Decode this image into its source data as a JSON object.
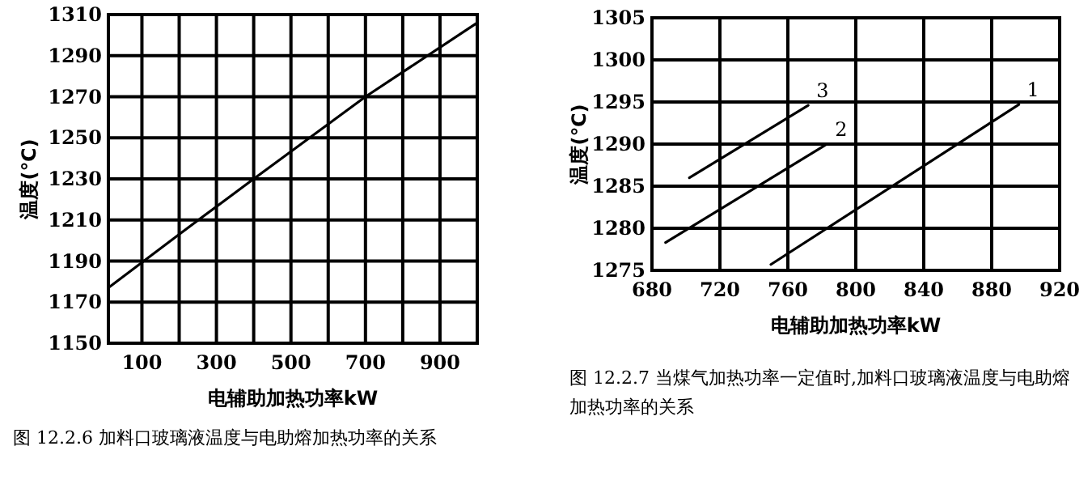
{
  "chart_data": [
    {
      "type": "line",
      "xlabel": "电辅助加热功率kW",
      "ylabel": "温度(℃)",
      "annotations": [
        "图 12.2.6  加料口玻璃液温度与电助熔加热功率的关系"
      ],
      "xlim": [
        10,
        1000
      ],
      "ylim": [
        1150,
        1310
      ],
      "xticks": [
        100,
        {
          "value": 200,
          "label": null
        },
        300,
        {
          "value": 400,
          "label": null
        },
        500,
        {
          "value": 600,
          "label": null
        },
        700,
        {
          "value": 800,
          "label": null
        },
        900,
        {
          "value": 1000,
          "label": null
        }
      ],
      "yticks": [
        1150,
        1170,
        1190,
        1210,
        1230,
        1250,
        1270,
        1290,
        1310
      ],
      "grid": true,
      "series": [
        {
          "color": "#000000",
          "x": [
            10,
            200,
            400,
            700,
            1000
          ],
          "values": [
            1177,
            1203,
            1230,
            1270,
            1306
          ]
        }
      ]
    },
    {
      "type": "line",
      "xlabel": "电辅助加热功率kW",
      "ylabel": "温度(℃)",
      "annotations": [
        "图 12.2.7  当煤气加热功率一定值时,加料口玻璃液温度与电助熔加热功率的关系"
      ],
      "xlim": [
        680,
        920
      ],
      "ylim": [
        1275,
        1305
      ],
      "xticks": [
        680,
        720,
        760,
        800,
        840,
        880,
        920
      ],
      "yticks": [
        1275,
        1280,
        1285,
        1290,
        1295,
        1300,
        1305
      ],
      "grid": true,
      "series": [
        {
          "name": "1",
          "color": "#000000",
          "x": [
            750,
            896
          ],
          "values": [
            1275.7,
            1294.7
          ]
        },
        {
          "name": "2",
          "color": "#000000",
          "x": [
            688,
            783
          ],
          "values": [
            1278.3,
            1290
          ]
        },
        {
          "name": "3",
          "color": "#000000",
          "x": [
            702,
            772
          ],
          "values": [
            1286,
            1294.6
          ]
        }
      ]
    }
  ]
}
